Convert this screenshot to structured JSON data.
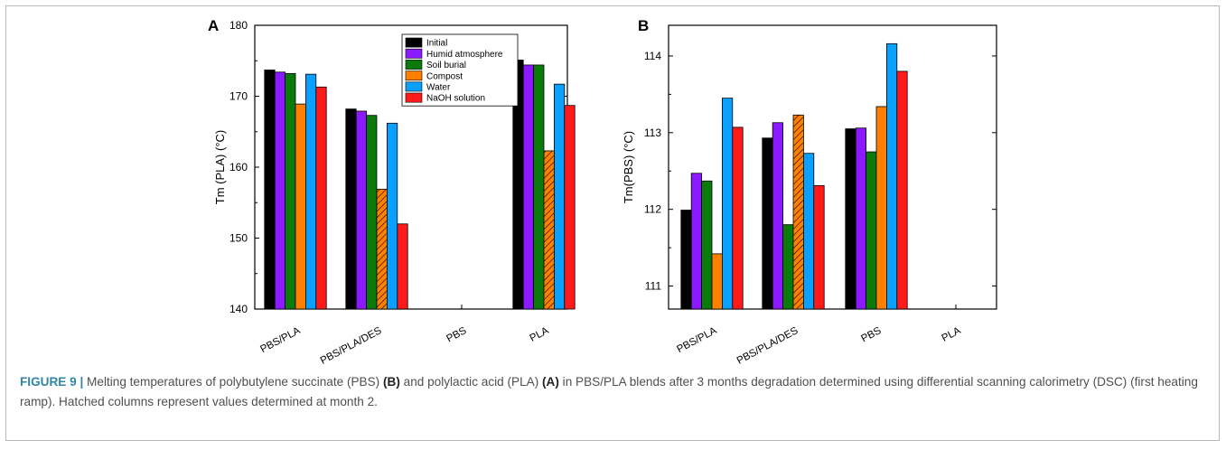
{
  "colors": {
    "initial": "#000000",
    "humid": "#8c1aff",
    "soil": "#0a7a0a",
    "compost": "#ff8000",
    "water": "#0aa0ff",
    "naoh": "#ff1a1a",
    "caption_label": "#2f86a8"
  },
  "caption": {
    "label": "FIGURE 9 |",
    "t1": " Melting temperatures of polybutylene succinate (PBS) ",
    "b1": "(B)",
    "t2": " and polylactic acid (PLA) ",
    "b2": "(A)",
    "t3": " in PBS/PLA blends after 3 months degradation determined using differential scanning calorimetry (DSC) (first heating ramp). Hatched columns represent values determined at month 2."
  },
  "chart_data": [
    {
      "panel": "A",
      "type": "bar",
      "ylabel": "Tm (PLA) (°C)",
      "ylim": [
        140,
        180
      ],
      "yticks": [
        140,
        150,
        160,
        170,
        180
      ],
      "categories": [
        "PBS/PLA",
        "PBS/PLA/DES",
        "PBS",
        "PLA"
      ],
      "legend_position": "top-center",
      "series": [
        {
          "name": "Initial",
          "color": "#000000",
          "values": [
            173.7,
            168.2,
            null,
            175.1
          ],
          "hatched": [
            false,
            false,
            false,
            false
          ]
        },
        {
          "name": "Humid atmosphere",
          "color": "#8c1aff",
          "values": [
            173.4,
            167.9,
            null,
            174.4
          ],
          "hatched": [
            false,
            false,
            false,
            false
          ]
        },
        {
          "name": "Soil burial",
          "color": "#0a7a0a",
          "values": [
            173.2,
            167.3,
            null,
            174.4
          ],
          "hatched": [
            false,
            false,
            false,
            false
          ]
        },
        {
          "name": "Compost",
          "color": "#ff8000",
          "values": [
            168.9,
            156.9,
            null,
            162.3
          ],
          "hatched": [
            false,
            true,
            false,
            true
          ]
        },
        {
          "name": "Water",
          "color": "#0aa0ff",
          "values": [
            173.1,
            166.2,
            null,
            171.7
          ],
          "hatched": [
            false,
            false,
            false,
            false
          ]
        },
        {
          "name": "NaOH solution",
          "color": "#ff1a1a",
          "values": [
            171.3,
            152.0,
            null,
            168.7
          ],
          "hatched": [
            false,
            false,
            false,
            false
          ]
        }
      ]
    },
    {
      "panel": "B",
      "type": "bar",
      "ylabel": "Tm(PBS) (°C)",
      "ylim": [
        110.7,
        114.4
      ],
      "yticks": [
        111,
        112,
        113,
        114
      ],
      "categories": [
        "PBS/PLA",
        "PBS/PLA/DES",
        "PBS",
        "PLA"
      ],
      "series": [
        {
          "name": "Initial",
          "color": "#000000",
          "values": [
            111.99,
            112.93,
            113.05,
            null
          ],
          "hatched": [
            false,
            false,
            false,
            false
          ]
        },
        {
          "name": "Humid atmosphere",
          "color": "#8c1aff",
          "values": [
            112.47,
            113.13,
            113.06,
            null
          ],
          "hatched": [
            false,
            false,
            false,
            false
          ]
        },
        {
          "name": "Soil burial",
          "color": "#0a7a0a",
          "values": [
            112.37,
            111.8,
            112.75,
            null
          ],
          "hatched": [
            false,
            false,
            false,
            false
          ]
        },
        {
          "name": "Compost",
          "color": "#ff8000",
          "values": [
            111.42,
            113.23,
            113.34,
            null
          ],
          "hatched": [
            false,
            true,
            false,
            false
          ]
        },
        {
          "name": "Water",
          "color": "#0aa0ff",
          "values": [
            113.45,
            112.73,
            114.16,
            null
          ],
          "hatched": [
            false,
            false,
            false,
            false
          ]
        },
        {
          "name": "NaOH solution",
          "color": "#ff1a1a",
          "values": [
            113.07,
            112.31,
            113.8,
            null
          ],
          "hatched": [
            false,
            false,
            false,
            false
          ]
        }
      ]
    }
  ]
}
